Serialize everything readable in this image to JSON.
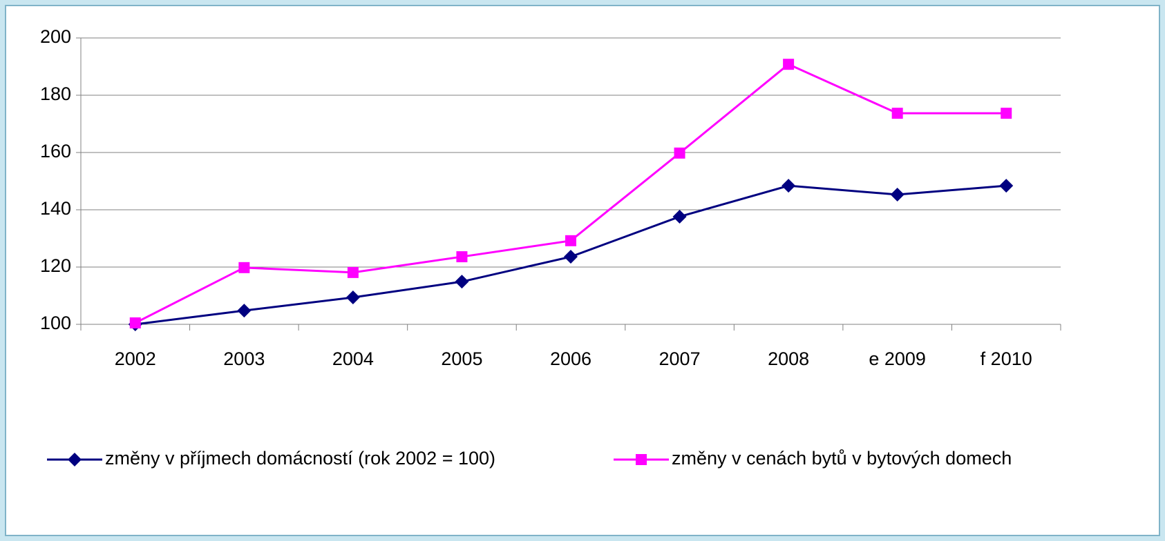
{
  "chart_data": {
    "type": "line",
    "categories": [
      "2002",
      "2003",
      "2004",
      "2005",
      "2006",
      "2007",
      "2008",
      "e 2009",
      "f 2010"
    ],
    "series": [
      {
        "name": "změny v příjmech domácností (rok 2002 = 100)",
        "color": "#000080",
        "marker": "diamond",
        "values": [
          100,
          104.8,
          109.4,
          114.9,
          123.6,
          137.6,
          148.4,
          145.3,
          148.4
        ]
      },
      {
        "name": "změny v cenách bytů v bytových domech",
        "color": "#ff00ff",
        "marker": "square",
        "values": [
          100.5,
          119.8,
          118.1,
          123.6,
          129.2,
          159.8,
          190.8,
          173.7,
          173.7
        ]
      }
    ],
    "ylim": [
      100,
      200
    ],
    "yticks": [
      100,
      120,
      140,
      160,
      180,
      200
    ],
    "grid": true,
    "legend": "bottom"
  }
}
